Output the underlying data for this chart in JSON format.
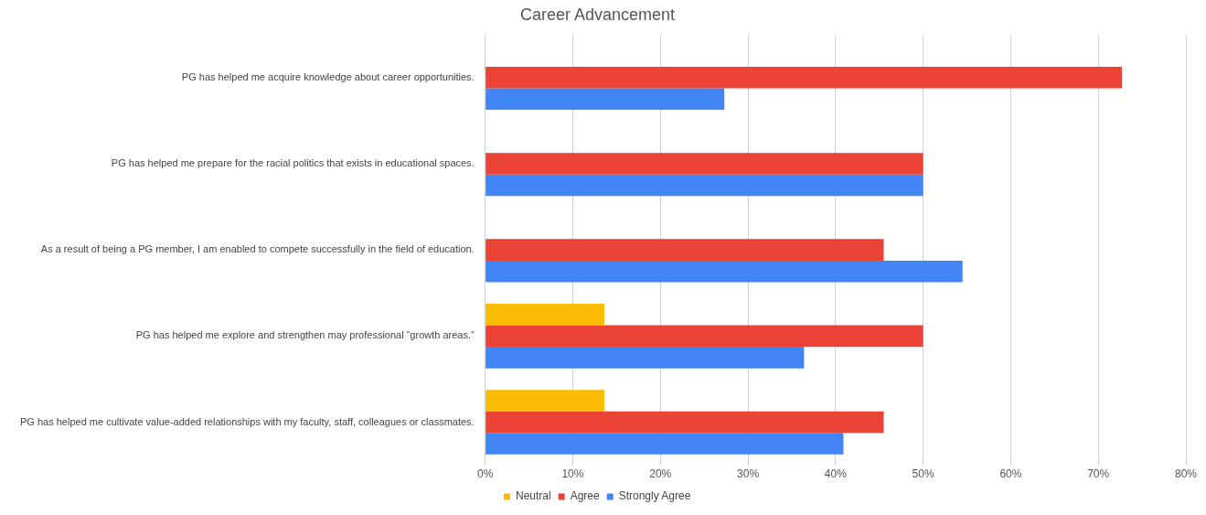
{
  "chart_data": {
    "type": "bar",
    "orientation": "horizontal",
    "title": "Career Advancement",
    "categories": [
      "PG has helped me acquire knowledge about career opportunities.",
      "PG has helped me prepare for the racial politics that exists in educational spaces.",
      "As a result of being a PG member, I am enabled to compete successfully in the field of education.",
      "PG has helped me explore and strengthen may professional “growth areas.”",
      "PG has helped me cultivate value-added relationships with my faculty, staff, colleagues or classmates."
    ],
    "series": [
      {
        "name": "Neutral",
        "color": "#fbbc04",
        "values": [
          null,
          null,
          null,
          13.6,
          13.6
        ]
      },
      {
        "name": "Agree",
        "color": "#ea4335",
        "values": [
          72.7,
          50,
          45.5,
          50,
          45.5
        ]
      },
      {
        "name": "Strongly Agree",
        "color": "#4285f4",
        "values": [
          27.3,
          50,
          54.5,
          36.4,
          40.9
        ]
      }
    ],
    "xlim": [
      0,
      80
    ],
    "xticks": [
      {
        "value": 0,
        "label": "0%"
      },
      {
        "value": 10,
        "label": "10%"
      },
      {
        "value": 20,
        "label": "20%"
      },
      {
        "value": 30,
        "label": "30%"
      },
      {
        "value": 40,
        "label": "40%"
      },
      {
        "value": 50,
        "label": "50%"
      },
      {
        "value": 60,
        "label": "60%"
      },
      {
        "value": 70,
        "label": "70%"
      },
      {
        "value": 80,
        "label": "80%"
      }
    ],
    "grid": "x",
    "legend": "bottom"
  }
}
